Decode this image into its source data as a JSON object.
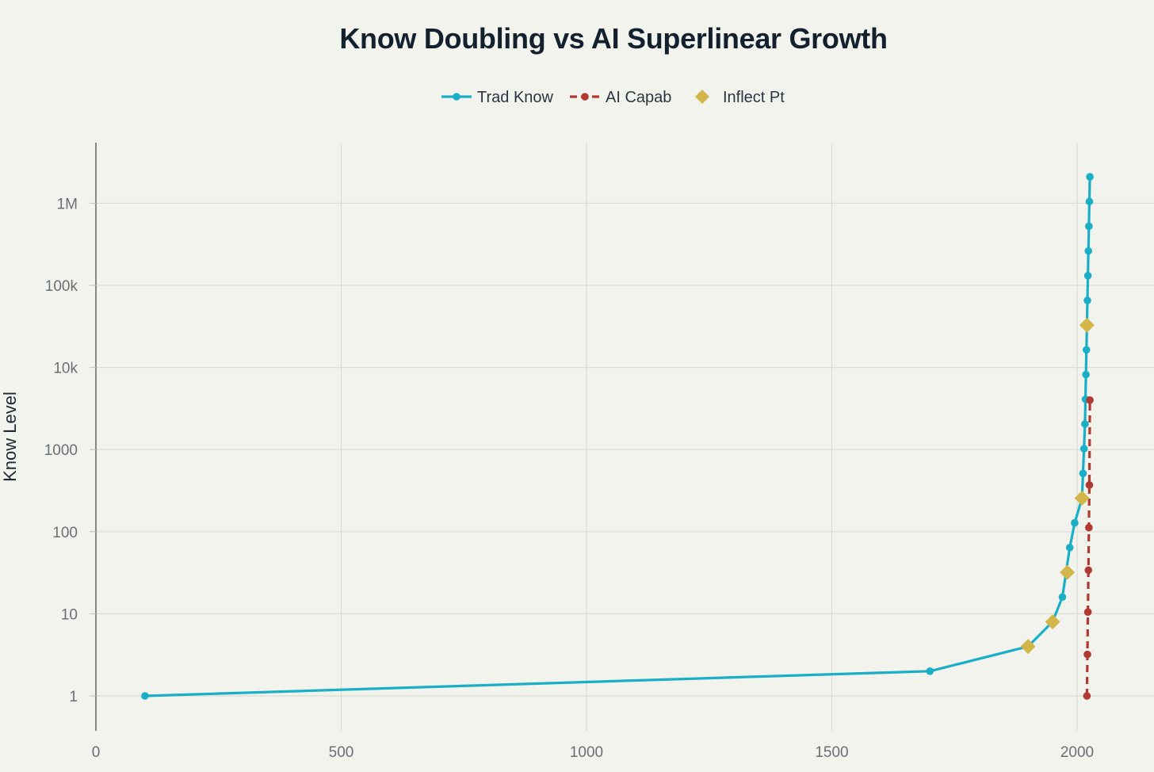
{
  "chart_data": {
    "type": "line",
    "title": "Know Doubling vs AI Superlinear Growth",
    "xlabel": "",
    "ylabel": "Know Level",
    "y_scale": "log",
    "xlim": [
      0,
      2130
    ],
    "ylim": [
      0.4,
      4000000
    ],
    "x_ticks": [
      0,
      500,
      1000,
      1500,
      2000
    ],
    "x_tick_labels": [
      "0",
      "500",
      "1000",
      "1500",
      "2000"
    ],
    "y_ticks": [
      1,
      10,
      100,
      1000,
      10000,
      100000,
      1000000
    ],
    "y_tick_labels": [
      "1",
      "10",
      "100",
      "1000",
      "10k",
      "100k",
      "1M"
    ],
    "grid": true,
    "legend_position": "top-center",
    "series": [
      {
        "name": "Trad Know",
        "style": "line+markers",
        "color": "#1aafc6",
        "points": [
          [
            100,
            1
          ],
          [
            1700,
            2
          ],
          [
            1900,
            4
          ],
          [
            1950,
            8
          ],
          [
            1970,
            16
          ],
          [
            1985,
            64
          ],
          [
            1995,
            128
          ],
          [
            2010,
            256
          ],
          [
            2012,
            512
          ],
          [
            2014,
            1024
          ],
          [
            2016,
            2048
          ],
          [
            2017,
            4096
          ],
          [
            2018,
            8192
          ],
          [
            2019,
            16384
          ],
          [
            2020,
            32768
          ],
          [
            2021,
            65536
          ],
          [
            2022,
            131072
          ],
          [
            2023,
            262144
          ],
          [
            2024,
            524288
          ],
          [
            2025,
            1048576
          ],
          [
            2026,
            2097152
          ]
        ]
      },
      {
        "name": "AI Capab",
        "style": "dashed+markers",
        "color": "#b03a32",
        "points": [
          [
            2020,
            1
          ],
          [
            2021,
            3.2
          ],
          [
            2022,
            10.5
          ],
          [
            2023,
            34
          ],
          [
            2024,
            112
          ],
          [
            2025,
            370
          ],
          [
            2026,
            4000
          ]
        ]
      },
      {
        "name": "Inflect Pt",
        "style": "markers",
        "marker": "diamond",
        "color": "#d2b64a",
        "points": [
          [
            1900,
            4
          ],
          [
            1950,
            8
          ],
          [
            1980,
            32
          ],
          [
            2010,
            256
          ],
          [
            2020,
            32768
          ]
        ]
      }
    ]
  }
}
